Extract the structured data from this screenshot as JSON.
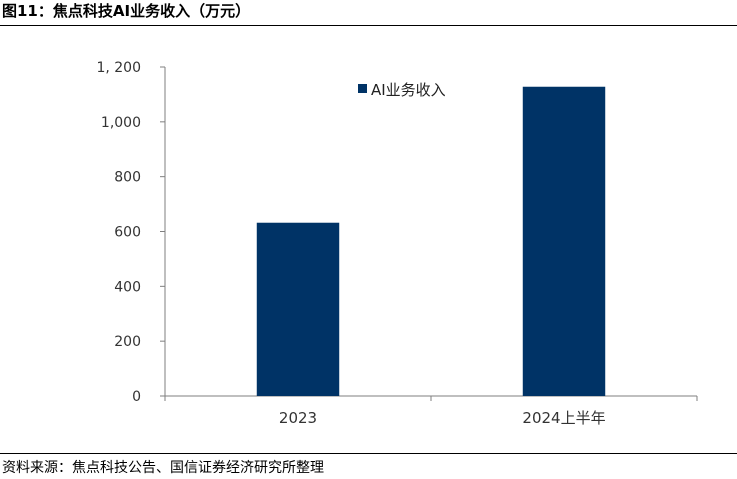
{
  "figure": {
    "title": "图11：焦点科技AI业务收入（万元）",
    "source": "资料来源：焦点科技公告、国信证券经济研究所整理"
  },
  "colors": {
    "bar": "#003366",
    "axis": "#7f7f7f",
    "text": "#333333"
  },
  "chart_data": {
    "type": "bar",
    "categories": [
      "2023",
      "2024上半年"
    ],
    "series": [
      {
        "name": "AI业务收入",
        "values": [
          632,
          1128
        ]
      }
    ],
    "ylim": [
      0,
      1200
    ],
    "yticks": [
      0,
      200,
      400,
      600,
      800,
      1000,
      1200
    ],
    "ytick_labels": [
      "0",
      "200",
      "400",
      "600",
      "800",
      "1,000",
      "1, 200"
    ],
    "grid": false,
    "legend_position": "top-center"
  }
}
